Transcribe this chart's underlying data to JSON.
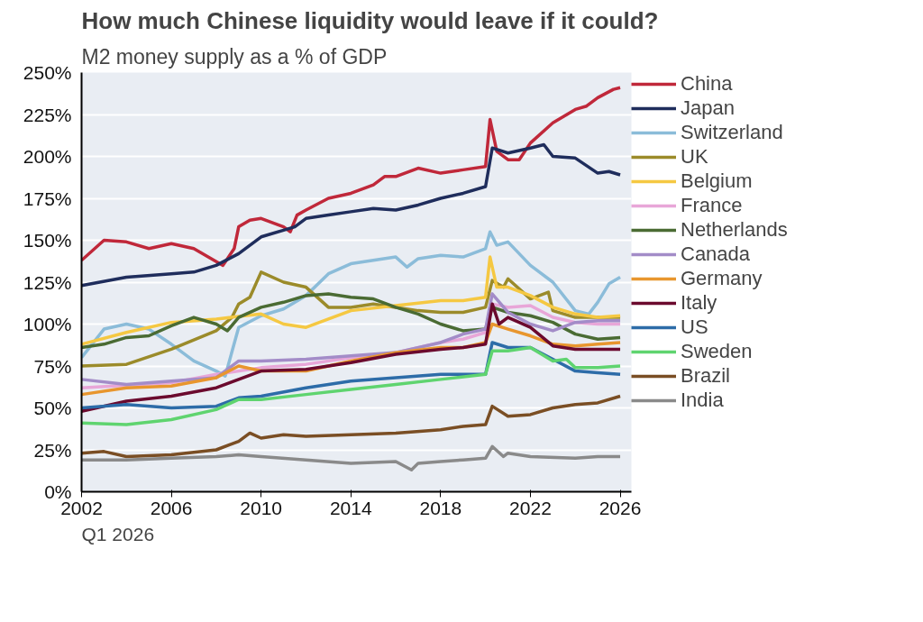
{
  "chart_data": {
    "type": "line",
    "title": "How much Chinese liquidity would leave if it could?",
    "subtitle": "M2 money supply as a % of GDP",
    "annotations": [
      "Q1 2026"
    ],
    "xlim": [
      2002,
      2026.5
    ],
    "xticks": [
      2002,
      2006,
      2010,
      2014,
      2018,
      2022,
      2026
    ],
    "ylim": [
      0,
      250
    ],
    "yticks": [
      {
        "value": 0,
        "label": "0%"
      },
      {
        "value": 25,
        "label": "25%"
      },
      {
        "value": 50,
        "label": "50%"
      },
      {
        "value": 75,
        "label": "75%"
      },
      {
        "value": 100,
        "label": "100%"
      },
      {
        "value": 125,
        "label": "125%"
      },
      {
        "value": 150,
        "label": "150%"
      },
      {
        "value": 175,
        "label": "175%"
      },
      {
        "value": 200,
        "label": "200%"
      },
      {
        "value": 225,
        "label": "225%"
      },
      {
        "value": 250,
        "label": "250%"
      }
    ],
    "grid": "y",
    "legend": "right",
    "line_style": "solid",
    "series": [
      {
        "name": "China",
        "color": "#c0283a",
        "x": [
          2002,
          2003,
          2004,
          2005,
          2006,
          2007,
          2008.3,
          2008.8,
          2009,
          2009.5,
          2010,
          2011,
          2011.3,
          2011.6,
          2012,
          2013,
          2014,
          2015,
          2015.5,
          2016,
          2017,
          2018,
          2019,
          2020,
          2020.2,
          2020.5,
          2021,
          2021.5,
          2022,
          2023,
          2024,
          2024.5,
          2025,
          2025.7,
          2026
        ],
        "values": [
          138,
          150,
          149,
          145,
          148,
          145,
          135,
          145,
          158,
          162,
          163,
          158,
          155,
          165,
          168,
          175,
          178,
          183,
          188,
          188,
          193,
          190,
          192,
          194,
          222,
          203,
          198,
          198,
          208,
          220,
          228,
          230,
          235,
          240,
          241
        ]
      },
      {
        "name": "Japan",
        "color": "#1f2d5c",
        "x": [
          2002,
          2004,
          2006,
          2007,
          2008,
          2009,
          2010,
          2011,
          2011.5,
          2012,
          2013,
          2014,
          2015,
          2016,
          2017,
          2018,
          2019,
          2020,
          2020.3,
          2021,
          2022,
          2022.6,
          2023,
          2024,
          2025,
          2025.5,
          2026
        ],
        "values": [
          123,
          128,
          130,
          131,
          135,
          142,
          152,
          156,
          158,
          163,
          165,
          167,
          169,
          168,
          171,
          175,
          178,
          182,
          205,
          202,
          205,
          207,
          200,
          199,
          190,
          191,
          189
        ]
      },
      {
        "name": "Switzerland",
        "color": "#8bbcd9",
        "x": [
          2002,
          2003,
          2004,
          2005,
          2006,
          2007,
          2008,
          2008.4,
          2009,
          2010,
          2011,
          2012,
          2013,
          2014,
          2015,
          2016,
          2016.5,
          2017,
          2018,
          2019,
          2020,
          2020.2,
          2020.5,
          2021,
          2022,
          2023,
          2024,
          2024.6,
          2025,
          2025.5,
          2026
        ],
        "values": [
          80,
          97,
          100,
          97,
          88,
          78,
          72,
          69,
          98,
          105,
          109,
          117,
          130,
          136,
          138,
          140,
          134,
          139,
          141,
          140,
          145,
          155,
          147,
          149,
          135,
          125,
          108,
          106,
          113,
          124,
          128
        ]
      },
      {
        "name": "UK",
        "color": "#9b8b2a",
        "x": [
          2002,
          2004,
          2006,
          2008,
          2008.7,
          2009,
          2009.5,
          2010,
          2011,
          2012,
          2013,
          2014,
          2015,
          2016,
          2017,
          2018,
          2019,
          2020,
          2020.3,
          2020.8,
          2021,
          2022,
          2022.8,
          2023,
          2024,
          2025,
          2026
        ],
        "values": [
          75,
          76,
          85,
          96,
          104,
          112,
          116,
          131,
          125,
          122,
          110,
          110,
          112,
          110,
          108,
          107,
          107,
          110,
          126,
          122,
          127,
          115,
          119,
          108,
          104,
          104,
          104
        ]
      },
      {
        "name": "Belgium",
        "color": "#f5c842",
        "x": [
          2002,
          2004,
          2006,
          2008,
          2010,
          2011,
          2012,
          2013,
          2014,
          2016,
          2018,
          2019,
          2020,
          2020.2,
          2020.5,
          2021,
          2022,
          2023,
          2024,
          2025,
          2026
        ],
        "values": [
          88,
          95,
          101,
          103,
          106,
          100,
          98,
          103,
          108,
          111,
          114,
          114,
          116,
          140,
          122,
          122,
          117,
          110,
          106,
          104,
          105
        ]
      },
      {
        "name": "France",
        "color": "#e8a6d8",
        "x": [
          2002,
          2006,
          2008,
          2010,
          2012,
          2014,
          2016,
          2018,
          2019,
          2020,
          2020.3,
          2021,
          2022,
          2023,
          2024,
          2025,
          2026
        ],
        "values": [
          62,
          65,
          70,
          74,
          76,
          80,
          83,
          89,
          91,
          95,
          112,
          110,
          111,
          104,
          101,
          100,
          100
        ]
      },
      {
        "name": "Netherlands",
        "color": "#4a6b33",
        "x": [
          2002,
          2003,
          2004,
          2005,
          2006,
          2007,
          2008,
          2008.5,
          2009,
          2010,
          2011,
          2012,
          2013,
          2014,
          2015,
          2016,
          2017,
          2018,
          2019,
          2020,
          2020.3,
          2021,
          2022,
          2023,
          2024,
          2025,
          2026
        ],
        "values": [
          86,
          88,
          92,
          93,
          99,
          104,
          100,
          96,
          104,
          110,
          113,
          117,
          118,
          116,
          115,
          110,
          106,
          100,
          96,
          97,
          110,
          107,
          105,
          101,
          94,
          91,
          92
        ]
      },
      {
        "name": "Canada",
        "color": "#a38cc8",
        "x": [
          2002,
          2004,
          2006,
          2008,
          2009,
          2010,
          2012,
          2014,
          2016,
          2018,
          2019,
          2020,
          2020.3,
          2021,
          2022,
          2023,
          2024,
          2025,
          2026
        ],
        "values": [
          67,
          64,
          66,
          68,
          78,
          78,
          79,
          81,
          83,
          89,
          94,
          97,
          118,
          107,
          100,
          96,
          101,
          102,
          102
        ]
      },
      {
        "name": "Germany",
        "color": "#e8962e",
        "x": [
          2002,
          2004,
          2006,
          2008,
          2009,
          2010,
          2012,
          2014,
          2016,
          2018,
          2019,
          2020,
          2020.3,
          2021,
          2022,
          2023,
          2024,
          2025,
          2026
        ],
        "values": [
          58,
          62,
          63,
          68,
          75,
          72,
          72,
          78,
          83,
          86,
          86,
          89,
          100,
          97,
          93,
          88,
          87,
          88,
          89
        ]
      },
      {
        "name": "Italy",
        "color": "#6b0a2e",
        "x": [
          2002,
          2004,
          2006,
          2008,
          2010,
          2012,
          2014,
          2016,
          2018,
          2019,
          2020,
          2020.3,
          2020.6,
          2021,
          2022,
          2023,
          2024,
          2025,
          2026
        ],
        "values": [
          48,
          54,
          57,
          62,
          72,
          73,
          77,
          82,
          85,
          86,
          88,
          112,
          100,
          104,
          98,
          87,
          85,
          85,
          85
        ]
      },
      {
        "name": "US",
        "color": "#2d6ca8",
        "x": [
          2002,
          2004,
          2006,
          2008,
          2009,
          2010,
          2012,
          2014,
          2016,
          2018,
          2020,
          2020.3,
          2021,
          2022,
          2023,
          2024,
          2025,
          2026
        ],
        "values": [
          50,
          52,
          50,
          51,
          56,
          57,
          62,
          66,
          68,
          70,
          70,
          89,
          86,
          86,
          79,
          72,
          71,
          70
        ]
      },
      {
        "name": "Sweden",
        "color": "#5fd46f",
        "x": [
          2002,
          2004,
          2006,
          2008,
          2009,
          2010,
          2012,
          2014,
          2016,
          2018,
          2020,
          2020.3,
          2021,
          2022,
          2023,
          2023.6,
          2024,
          2025,
          2026
        ],
        "values": [
          41,
          40,
          43,
          49,
          55,
          55,
          58,
          61,
          64,
          67,
          70,
          84,
          84,
          86,
          78,
          79,
          74,
          74,
          75
        ]
      },
      {
        "name": "Brazil",
        "color": "#7a4e24",
        "x": [
          2002,
          2003,
          2004,
          2006,
          2008,
          2009,
          2009.5,
          2010,
          2011,
          2012,
          2014,
          2016,
          2018,
          2019,
          2020,
          2020.3,
          2021,
          2022,
          2023,
          2024,
          2025,
          2026
        ],
        "values": [
          23,
          24,
          21,
          22,
          25,
          30,
          35,
          32,
          34,
          33,
          34,
          35,
          37,
          39,
          40,
          51,
          45,
          46,
          50,
          52,
          53,
          57
        ]
      },
      {
        "name": "India",
        "color": "#8a8a8a",
        "x": [
          2002,
          2004,
          2006,
          2008,
          2009,
          2010,
          2012,
          2014,
          2016,
          2016.7,
          2017,
          2018,
          2019,
          2020,
          2020.3,
          2020.8,
          2021,
          2022,
          2024,
          2025,
          2026
        ],
        "values": [
          19,
          19,
          20,
          21,
          22,
          21,
          19,
          17,
          18,
          13,
          17,
          18,
          19,
          20,
          27,
          21,
          23,
          21,
          20,
          21,
          21
        ]
      }
    ]
  }
}
